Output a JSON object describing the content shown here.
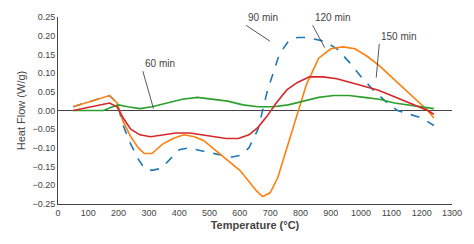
{
  "chart_data": {
    "type": "line",
    "xlabel": "Temperature (°C)",
    "ylabel": "Heat Flow (W/g)",
    "xlim": [
      0,
      1300
    ],
    "ylim": [
      -0.25,
      0.25
    ],
    "xticks": [
      0,
      100,
      200,
      300,
      400,
      500,
      600,
      700,
      800,
      900,
      1000,
      1100,
      1200,
      1300
    ],
    "yticks": [
      {
        "value": -0.25,
        "label": "−0.25"
      },
      {
        "value": -0.2,
        "label": "−0.20"
      },
      {
        "value": -0.15,
        "label": "−0.15"
      },
      {
        "value": -0.1,
        "label": "−0.10"
      },
      {
        "value": -0.05,
        "label": "−0.05"
      },
      {
        "value": 0,
        "label": "0.00"
      },
      0.05,
      {
        "value": 0.1,
        "label": "0.10"
      },
      0.15,
      {
        "value": 0.2,
        "label": "0.20"
      },
      0.25
    ],
    "grid": false,
    "series": [
      {
        "line_style": "dashed",
        "x": [
          50,
          170,
          195,
          215,
          240,
          265,
          285,
          310,
          340,
          370,
          400,
          430,
          460,
          490,
          515,
          540,
          570,
          600,
          630,
          660,
          690,
          710,
          730,
          760,
          790,
          820,
          850,
          880,
          920,
          960,
          1000,
          1040,
          1080,
          1120,
          1160,
          1200,
          1240
        ],
        "values": [
          0.01,
          0.04,
          0.02,
          -0.04,
          -0.09,
          -0.13,
          -0.155,
          -0.16,
          -0.155,
          -0.13,
          -0.105,
          -0.1,
          -0.105,
          -0.11,
          -0.115,
          -0.12,
          -0.125,
          -0.12,
          -0.1,
          -0.05,
          0.05,
          0.1,
          0.15,
          0.185,
          0.195,
          0.195,
          0.19,
          0.185,
          0.165,
          0.13,
          0.09,
          0.055,
          0.025,
          0.0,
          -0.01,
          -0.02,
          -0.04
        ]
      },
      {
        "line_style": "solid",
        "x": [
          50,
          170,
          195,
          215,
          240,
          265,
          285,
          310,
          345,
          380,
          415,
          450,
          480,
          510,
          540,
          570,
          600,
          630,
          655,
          675,
          700,
          725,
          755,
          785,
          820,
          860,
          900,
          940,
          980,
          1020,
          1060,
          1100,
          1140,
          1180,
          1220,
          1240
        ],
        "values": [
          0.01,
          0.04,
          0.02,
          -0.03,
          -0.07,
          -0.1,
          -0.115,
          -0.115,
          -0.09,
          -0.075,
          -0.065,
          -0.07,
          -0.08,
          -0.1,
          -0.12,
          -0.14,
          -0.16,
          -0.19,
          -0.215,
          -0.23,
          -0.22,
          -0.18,
          -0.1,
          -0.02,
          0.07,
          0.14,
          0.165,
          0.17,
          0.165,
          0.145,
          0.12,
          0.09,
          0.06,
          0.03,
          0.0,
          -0.02
        ]
      },
      {
        "line_style": "solid",
        "x": [
          50,
          150,
          180,
          200,
          230,
          270,
          310,
          360,
          410,
          460,
          510,
          560,
          610,
          660,
          710,
          760,
          810,
          860,
          910,
          960,
          1010,
          1060,
          1110,
          1160,
          1200,
          1240
        ],
        "values": [
          0.0,
          0.0,
          0.01,
          0.015,
          0.01,
          0.005,
          0.01,
          0.02,
          0.03,
          0.035,
          0.03,
          0.025,
          0.015,
          0.01,
          0.01,
          0.015,
          0.025,
          0.035,
          0.04,
          0.04,
          0.035,
          0.03,
          0.02,
          0.015,
          0.01,
          0.005
        ]
      },
      {
        "line_style": "solid",
        "x": [
          50,
          170,
          195,
          215,
          240,
          270,
          305,
          345,
          390,
          435,
          475,
          515,
          555,
          595,
          630,
          660,
          690,
          720,
          755,
          790,
          830,
          875,
          920,
          965,
          1010,
          1055,
          1100,
          1145,
          1190,
          1220,
          1240
        ],
        "values": [
          0.0,
          0.02,
          0.01,
          -0.02,
          -0.05,
          -0.065,
          -0.07,
          -0.065,
          -0.06,
          -0.06,
          -0.065,
          -0.07,
          -0.075,
          -0.075,
          -0.065,
          -0.045,
          -0.015,
          0.02,
          0.055,
          0.075,
          0.09,
          0.09,
          0.085,
          0.075,
          0.065,
          0.055,
          0.04,
          0.025,
          0.01,
          0.0,
          -0.01
        ]
      }
    ],
    "annotations": [
      {
        "text": "60 min",
        "xy": [
          315,
          0.005
        ],
        "xytext": [
          280,
          0.105
        ]
      },
      {
        "text": "90 min",
        "xy": [
          700,
          0.185
        ],
        "xytext": [
          620,
          0.228
        ]
      },
      {
        "text": "120 min",
        "xy": [
          880,
          0.168
        ],
        "xytext": [
          840,
          0.228
        ]
      },
      {
        "text": "150 min",
        "xy": [
          1050,
          0.088
        ],
        "xytext": [
          1060,
          0.178
        ]
      }
    ]
  }
}
